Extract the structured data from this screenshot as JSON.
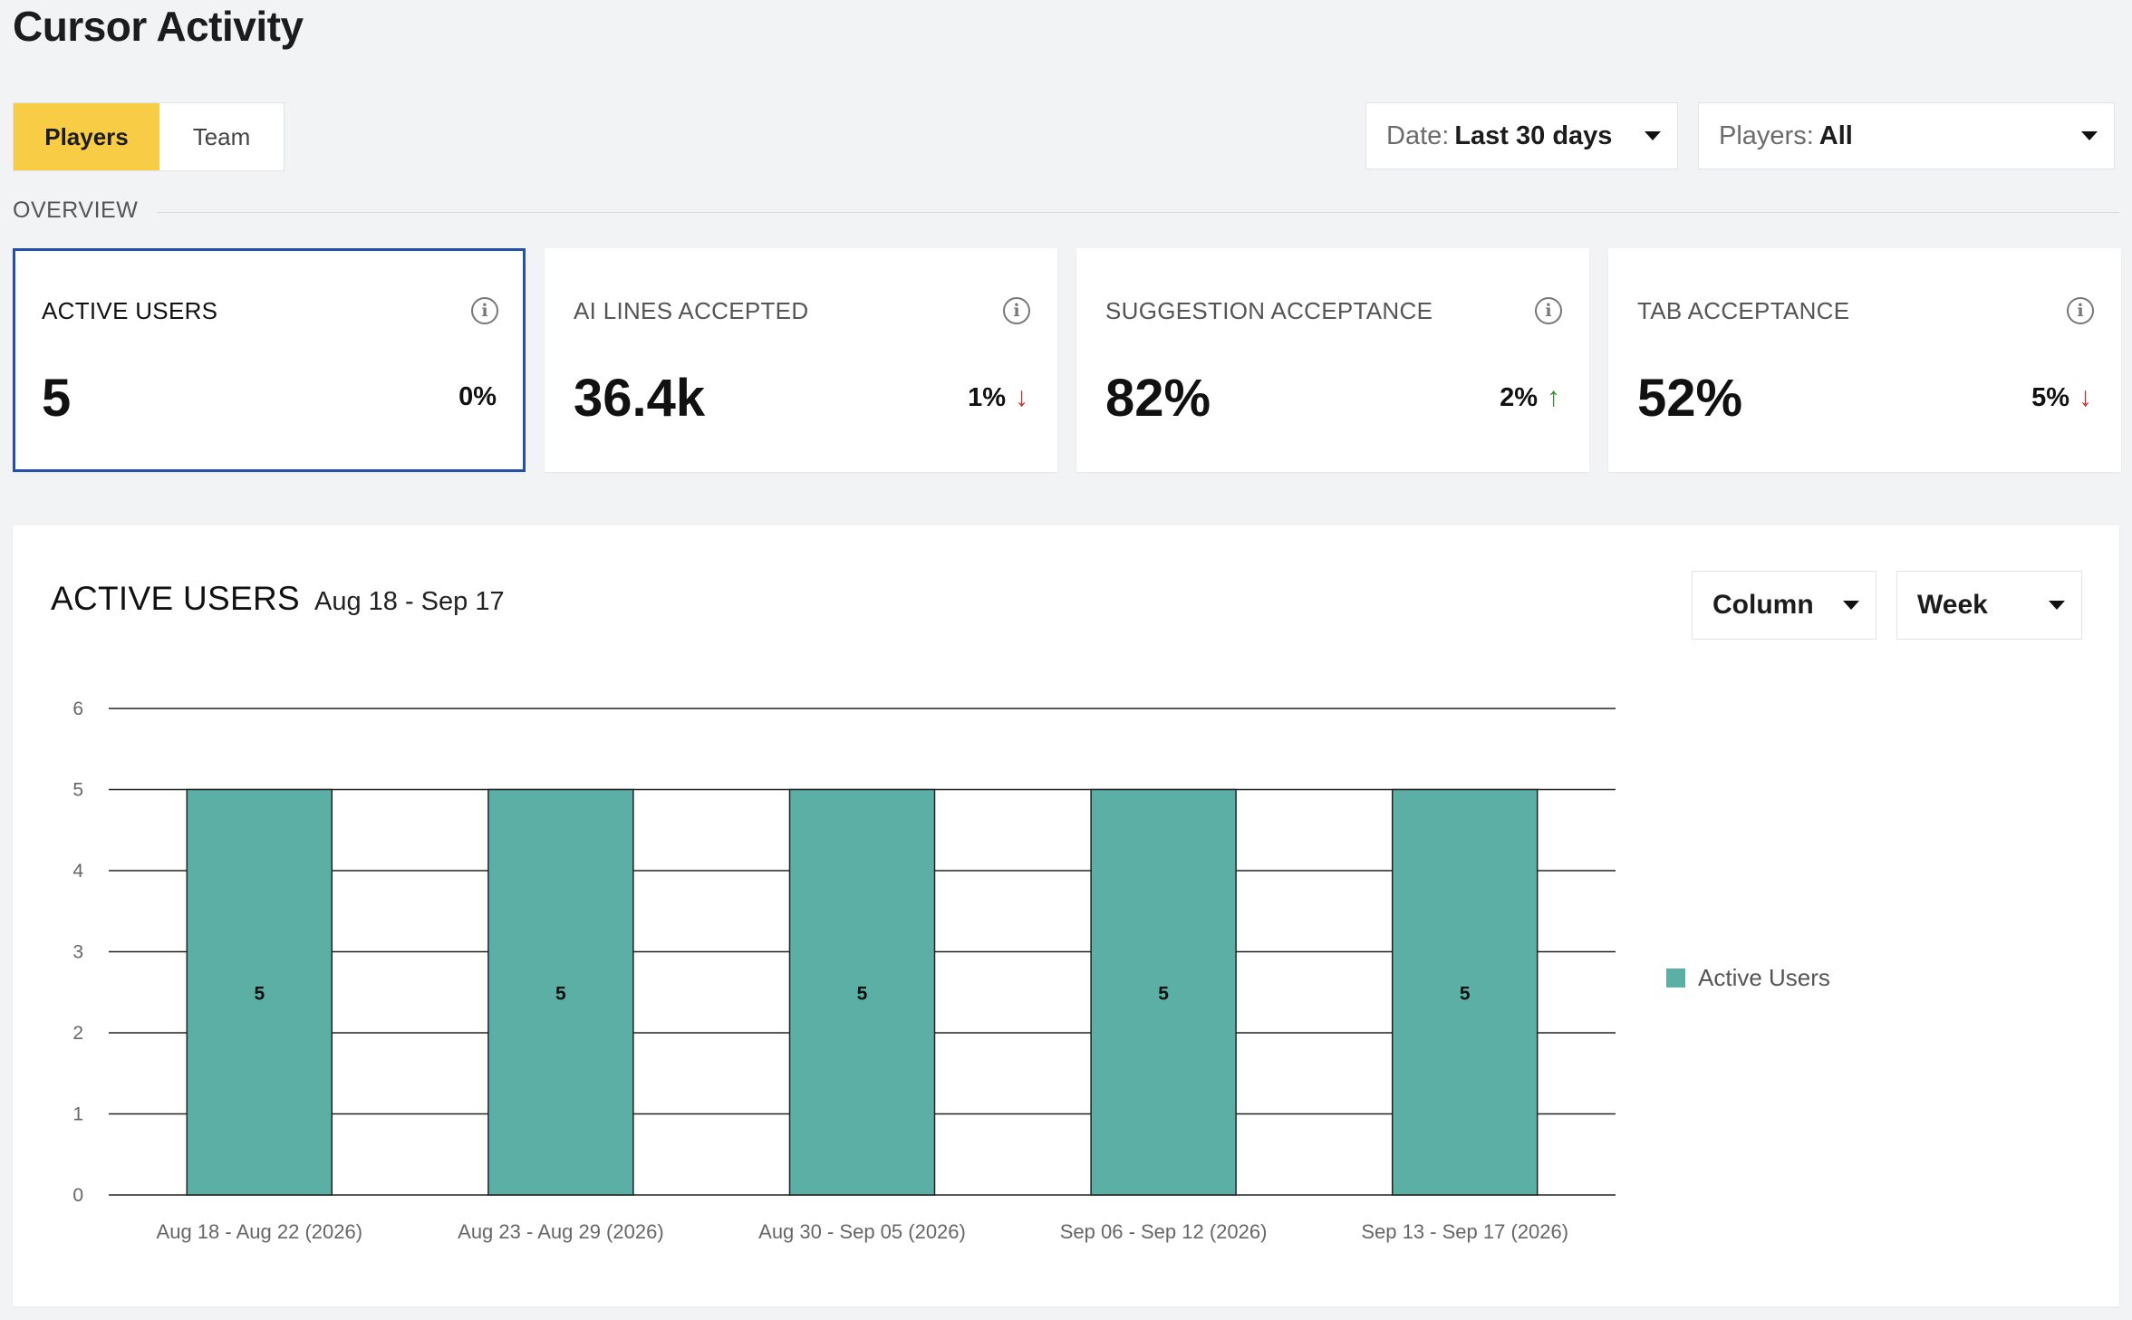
{
  "page": {
    "title": "Cursor Activity"
  },
  "tabs": [
    {
      "label": "Players",
      "active": true
    },
    {
      "label": "Team",
      "active": false
    }
  ],
  "filters": {
    "date": {
      "label": "Date:",
      "value": "Last 30 days"
    },
    "players": {
      "label": "Players:",
      "value": "All"
    }
  },
  "overview": {
    "label": "OVERVIEW",
    "cards": [
      {
        "title": "ACTIVE USERS",
        "value": "5",
        "delta": "0%",
        "trend": "none",
        "selected": true
      },
      {
        "title": "AI LINES ACCEPTED",
        "value": "36.4k",
        "delta": "1%",
        "trend": "down",
        "selected": false
      },
      {
        "title": "SUGGESTION ACCEPTANCE",
        "value": "82%",
        "delta": "2%",
        "trend": "up",
        "selected": false
      },
      {
        "title": "TAB ACCEPTANCE",
        "value": "52%",
        "delta": "5%",
        "trend": "down",
        "selected": false
      }
    ]
  },
  "chart_panel": {
    "title": "ACTIVE USERS",
    "range": "Aug 18 - Sep 17",
    "chart_type_select": "Column",
    "interval_select": "Week"
  },
  "icons": {
    "info": "info-icon",
    "trend_down": "arrow-down-icon",
    "trend_up": "arrow-up-icon",
    "dropdown": "caret-down-icon"
  },
  "colors": {
    "accent": "#f8cd45",
    "selected_border": "#2450a8",
    "bar": "#5bafa5",
    "down": "#c9302c",
    "up": "#2e8b2e"
  },
  "chart_data": {
    "type": "bar",
    "categories": [
      "Aug 18 - Aug 22 (2026)",
      "Aug 23 - Aug 29 (2026)",
      "Aug 30 - Sep 05 (2026)",
      "Sep 06 - Sep 12 (2026)",
      "Sep 13 - Sep 17 (2026)"
    ],
    "series": [
      {
        "name": "Active Users",
        "values": [
          5,
          5,
          5,
          5,
          5
        ]
      }
    ],
    "ylim": [
      0,
      6
    ],
    "yticks": [
      0,
      1,
      2,
      3,
      4,
      5,
      6
    ],
    "data_labels": true,
    "grid": true,
    "legend": "right"
  }
}
